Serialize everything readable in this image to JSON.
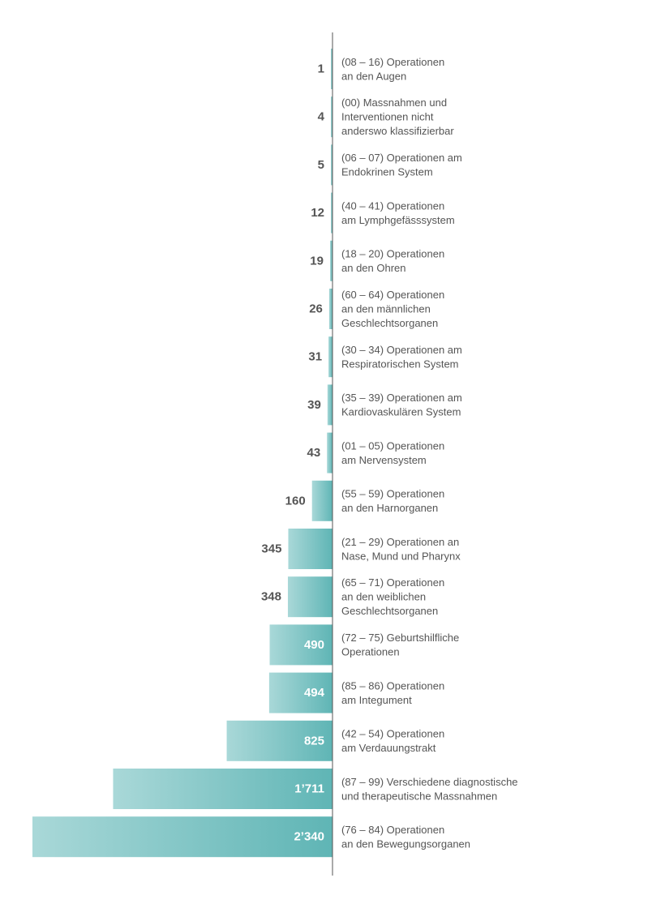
{
  "chart_data": {
    "type": "bar",
    "orientation": "horizontal",
    "title": "",
    "xlabel": "",
    "ylabel": "",
    "grid": false,
    "legend": "none",
    "categories": [
      [
        "(08 – 16) Operationen",
        "an den Augen"
      ],
      [
        "(00) Massnahmen und",
        "Interventionen nicht",
        "anderswo klassifizierbar"
      ],
      [
        "(06 – 07) Operationen am",
        "Endokrinen System"
      ],
      [
        "(40 – 41)  Operationen",
        "am Lymphgefässsystem"
      ],
      [
        "(18 – 20) Operationen",
        "an den Ohren"
      ],
      [
        "(60 – 64) Operationen",
        "an den männlichen",
        "Geschlechtsorganen"
      ],
      [
        "(30 – 34) Operationen am",
        "Respiratorischen System"
      ],
      [
        "(35 – 39) Operationen am",
        "Kardiovaskulären System"
      ],
      [
        "(01 – 05) Operationen",
        "am Nervensystem"
      ],
      [
        "(55 – 59) Operationen",
        "an den Harnorganen"
      ],
      [
        "(21 – 29) Operationen an",
        "Nase, Mund und Pharynx"
      ],
      [
        "(65 – 71) Operationen",
        "an den weiblichen",
        "Geschlechtsorganen"
      ],
      [
        "(72 – 75) Geburtshilfliche",
        "Operationen"
      ],
      [
        "(85 – 86) Operationen",
        "am Integument"
      ],
      [
        "(42 – 54) Operationen",
        "am Verdauungstrakt"
      ],
      [
        "(87 – 99) Verschiedene diagnostische",
        "und therapeutische Massnahmen"
      ],
      [
        "(76 – 84) Operationen",
        "an den Bewegungsorganen"
      ]
    ],
    "values": [
      1,
      4,
      5,
      12,
      19,
      26,
      31,
      39,
      43,
      160,
      345,
      348,
      490,
      494,
      825,
      1711,
      2340
    ],
    "value_labels": [
      "1",
      "4",
      "5",
      "12",
      "19",
      "26",
      "31",
      "39",
      "43",
      "160",
      "345",
      "348",
      "490",
      "494",
      "825",
      "1’711",
      "2’340"
    ],
    "xlim": [
      0,
      2340
    ],
    "colors": {
      "bar_light": "#a9d8d8",
      "bar_dark": "#5fb5b5",
      "axis": "#555555",
      "value_outside": "#555555",
      "value_inside": "#ffffff",
      "label": "#555555"
    }
  }
}
